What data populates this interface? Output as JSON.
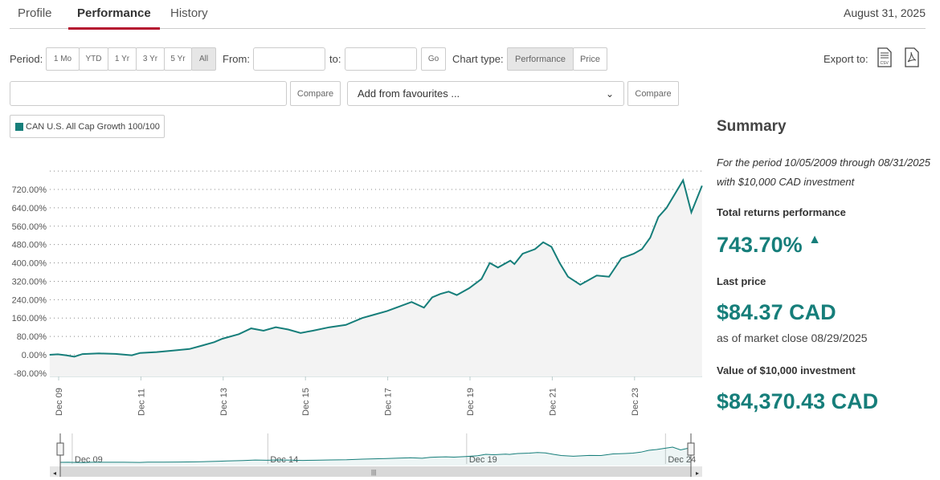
{
  "tabs": [
    {
      "label": "Profile"
    },
    {
      "label": "Performance"
    },
    {
      "label": "History"
    }
  ],
  "date": "August 31, 2025",
  "toolbar": {
    "period_label": "Period:",
    "periods": [
      "1 Mo",
      "YTD",
      "1 Yr",
      "3 Yr",
      "5 Yr",
      "All"
    ],
    "selected_period": "All",
    "from_label": "From:",
    "to_label": "to:",
    "go": "Go",
    "chart_type_label": "Chart type:",
    "chart_types": [
      "Performance",
      "Price"
    ],
    "export_label": "Export to:"
  },
  "compare": {
    "compare_label": "Compare",
    "favourites_placeholder": "Add from favourites ...",
    "compare2_label": "Compare"
  },
  "legend": {
    "series_name": "CAN U.S. All Cap Growth 100/100",
    "color": "#167e7a"
  },
  "summary": {
    "title": "Summary",
    "period_text": "For the period 10/05/2009 through 08/31/2025",
    "investment_text": "with $10,000 CAD investment",
    "total_label": "Total returns performance",
    "total_value": "743.70%",
    "last_price_label": "Last price",
    "last_price": "$84.37 CAD",
    "as_of": "as of market close 08/29/2025",
    "value_label": "Value of $10,000 investment",
    "value": "$84,370.43 CAD"
  },
  "chart_data": {
    "type": "area",
    "ylim": [
      -80,
      800
    ],
    "yticks": [
      "720.00%",
      "640.00%",
      "560.00%",
      "480.00%",
      "400.00%",
      "320.00%",
      "240.00%",
      "160.00%",
      "80.00%",
      "0.00%",
      "-80.00%"
    ],
    "ytick_values": [
      720,
      640,
      560,
      480,
      400,
      320,
      240,
      160,
      80,
      0,
      -80
    ],
    "xticks": [
      "Dec 09",
      "Dec 11",
      "Dec 13",
      "Dec 15",
      "Dec 17",
      "Dec 19",
      "Dec 21",
      "Dec 23"
    ],
    "xtick_years": [
      2009.92,
      2011.92,
      2013.92,
      2015.92,
      2017.92,
      2019.92,
      2021.92,
      2023.92
    ],
    "navigator_ticks": [
      "Dec 09",
      "Dec 14",
      "Dec 19",
      "Dec 24"
    ],
    "navigator_tick_years": [
      2009.92,
      2014.92,
      2019.92,
      2024.92
    ],
    "x": [
      2009.7,
      2009.9,
      2010.1,
      2010.3,
      2010.5,
      2010.9,
      2011.3,
      2011.7,
      2011.9,
      2012.3,
      2012.7,
      2013.1,
      2013.4,
      2013.7,
      2013.9,
      2014.3,
      2014.6,
      2014.9,
      2015.2,
      2015.5,
      2015.8,
      2016.1,
      2016.5,
      2016.9,
      2017.3,
      2017.6,
      2017.9,
      2018.2,
      2018.5,
      2018.8,
      2019.0,
      2019.2,
      2019.4,
      2019.6,
      2019.9,
      2020.2,
      2020.4,
      2020.6,
      2020.9,
      2021.0,
      2021.2,
      2021.5,
      2021.7,
      2021.9,
      2022.1,
      2022.3,
      2022.6,
      2022.8,
      2023.0,
      2023.3,
      2023.6,
      2023.9,
      2024.1,
      2024.3,
      2024.5,
      2024.7,
      2024.9,
      2025.1,
      2025.3,
      2025.56
    ],
    "values": [
      0,
      2,
      -2,
      -8,
      3,
      6,
      4,
      -2,
      8,
      12,
      18,
      25,
      40,
      55,
      70,
      90,
      115,
      105,
      120,
      110,
      95,
      105,
      120,
      130,
      160,
      175,
      190,
      210,
      230,
      205,
      250,
      265,
      275,
      260,
      290,
      330,
      400,
      380,
      410,
      395,
      440,
      460,
      490,
      470,
      400,
      340,
      305,
      325,
      345,
      340,
      420,
      440,
      460,
      510,
      600,
      640,
      700,
      760,
      620,
      736
    ]
  }
}
